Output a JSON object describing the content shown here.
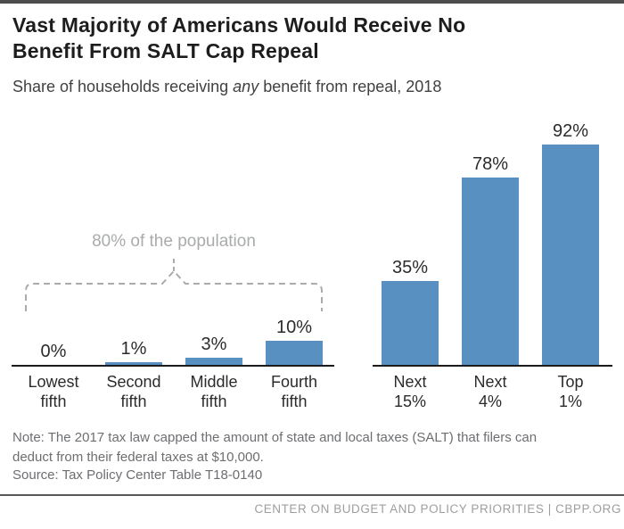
{
  "page": {
    "title_lines": [
      "Vast Majority of Americans Would Receive No",
      "Benefit From SALT Cap Repeal"
    ],
    "subtitle": {
      "prefix": "Share of households receiving ",
      "italic_word": "any",
      "suffix": " benefit from repeal, 2018"
    },
    "note": "Note: The 2017 tax law capped the amount of state and local taxes (SALT) that filers can deduct from their federal taxes at $10,000.",
    "source": "Source: Tax Policy Center Table T18-0140",
    "footer": "CENTER ON BUDGET AND POLICY PRIORITIES | CBPP.ORG",
    "colors": {
      "accent_bar": "#4d4d4d",
      "bar_blue": "#5891c1",
      "annotation_gray": "#a9abad",
      "text_gray": "#6d6e71",
      "footer_gray": "#9c9ea0"
    }
  },
  "chart_data": {
    "type": "bar",
    "title": "Vast Majority of Americans Would Receive No Benefit From SALT Cap Repeal",
    "subtitle": "Share of households receiving any benefit from repeal, 2018",
    "categories": [
      "Lowest\nfifth",
      "Second\nfifth",
      "Middle\nfifth",
      "Fourth\nfifth",
      "Next\n15%",
      "Next\n4%",
      "Top\n1%"
    ],
    "values": [
      0,
      1,
      3,
      10,
      35,
      78,
      92
    ],
    "value_labels": [
      "0%",
      "1%",
      "3%",
      "10%",
      "35%",
      "78%",
      "92%"
    ],
    "unit": "%",
    "ylim": [
      0,
      100
    ],
    "grid": false,
    "legend": false,
    "bar_color": "#5891c1",
    "groups": [
      {
        "name": "bottom-four-fifths",
        "indices": [
          0,
          1,
          2,
          3
        ],
        "annotation": "80% of the population"
      },
      {
        "name": "top-fifth-breakdown",
        "indices": [
          4,
          5,
          6
        ]
      }
    ],
    "annotation": "80% of the population"
  }
}
